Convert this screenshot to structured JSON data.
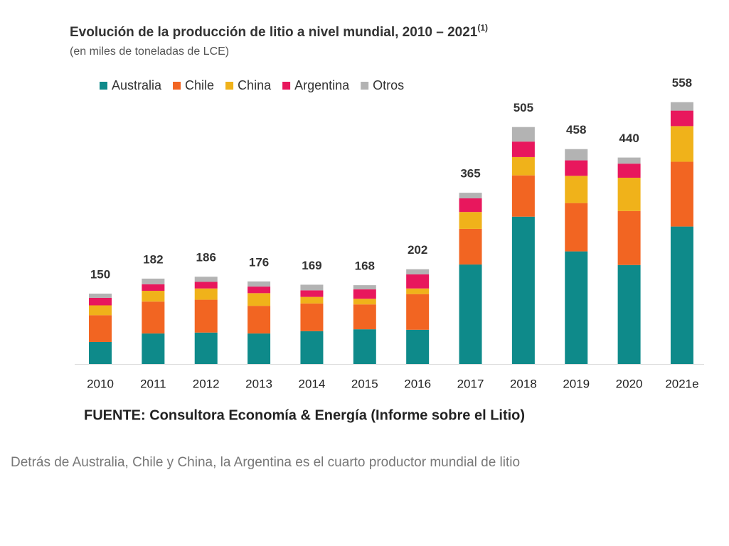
{
  "chart_data": {
    "type": "stacked_bar",
    "title": "Evolución de la producción de litio a nivel mundial, 2010 – 2021",
    "title_note": "(1)",
    "subtitle": "(en miles de toneladas de LCE)",
    "categories": [
      "2010",
      "2011",
      "2012",
      "2013",
      "2014",
      "2015",
      "2016",
      "2017",
      "2018",
      "2019",
      "2020",
      "2021e"
    ],
    "series": [
      {
        "name": "Australia",
        "color": "#0e8a8a",
        "values": [
          47,
          65,
          67,
          65,
          70,
          74,
          73,
          212,
          314,
          240,
          211,
          293
        ]
      },
      {
        "name": "Chile",
        "color": "#f26522",
        "values": [
          57,
          68,
          70,
          59,
          59,
          53,
          76,
          76,
          88,
          103,
          115,
          138
        ]
      },
      {
        "name": "China",
        "color": "#f0b21a",
        "values": [
          21,
          23,
          24,
          27,
          14,
          12,
          12,
          36,
          39,
          58,
          71,
          76
        ]
      },
      {
        "name": "Argentina",
        "color": "#e8175d",
        "values": [
          16,
          14,
          14,
          14,
          14,
          20,
          30,
          29,
          33,
          33,
          30,
          33
        ]
      },
      {
        "name": "Otros",
        "color": "#b3b3b3",
        "values": [
          9,
          12,
          11,
          11,
          12,
          9,
          11,
          12,
          31,
          24,
          13,
          18
        ]
      }
    ],
    "totals": [
      150,
      182,
      186,
      176,
      169,
      168,
      202,
      365,
      505,
      458,
      440,
      558
    ],
    "legend": "top-left"
  },
  "source": "FUENTE: Consultora Economía & Energía (Informe sobre el Litio)",
  "caption": "Detrás de Australia, Chile y China, la Argentina es el cuarto productor mundial de litio"
}
